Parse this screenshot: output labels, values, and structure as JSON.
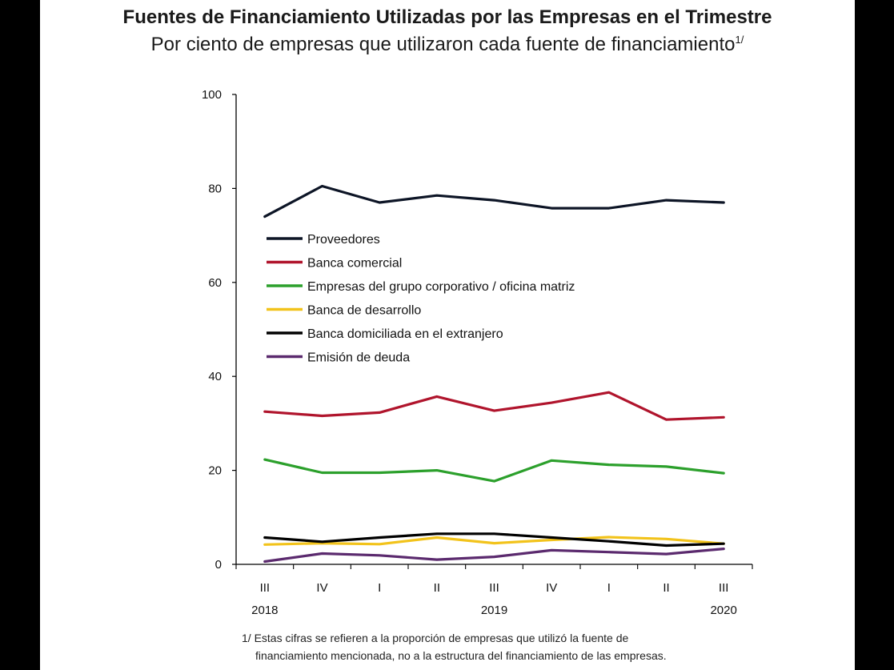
{
  "title": "Fuentes de Financiamiento Utilizadas por las Empresas en el Trimestre",
  "subtitle": "Por ciento de empresas que utilizaron cada fuente de financiamiento",
  "subtitle_note": "1/",
  "footnote": {
    "line1": "1/ Estas cifras se refieren a la proporción de empresas que utilizó la fuente de",
    "line2": "financiamiento mencionada, no a la estructura del financiamiento de las empresas."
  },
  "chart_data": {
    "type": "line",
    "title": "Fuentes de Financiamiento Utilizadas por las Empresas en el Trimestre",
    "ylabel": "Por ciento de empresas que utilizaron cada fuente de financiamiento",
    "ylim": [
      0,
      100
    ],
    "yticks": [
      0,
      20,
      40,
      60,
      80,
      100
    ],
    "categories": [
      "III",
      "IV",
      "I",
      "II",
      "III",
      "IV",
      "I",
      "II",
      "III"
    ],
    "year_labels": [
      {
        "label": "2018",
        "index": 0
      },
      {
        "label": "2019",
        "index": 4
      },
      {
        "label": "2020",
        "index": 8
      }
    ],
    "legend_position": "upper-left",
    "series": [
      {
        "name": "Proveedores",
        "color": "#0d1526",
        "values": [
          74.0,
          80.5,
          77.0,
          78.5,
          77.5,
          75.8,
          75.8,
          77.5,
          77.0
        ]
      },
      {
        "name": "Banca comercial",
        "color": "#b0142c",
        "values": [
          32.5,
          31.6,
          32.3,
          35.7,
          32.7,
          34.4,
          36.6,
          30.8,
          31.3
        ]
      },
      {
        "name": "Empresas del grupo corporativo / oficina matriz",
        "color": "#2ca02c",
        "values": [
          22.3,
          19.5,
          19.5,
          20.0,
          17.7,
          22.1,
          21.2,
          20.8,
          19.4
        ]
      },
      {
        "name": "Banca de desarrollo",
        "color": "#f2c31b",
        "values": [
          4.2,
          4.5,
          4.3,
          5.7,
          4.5,
          5.2,
          5.8,
          5.4,
          4.4
        ]
      },
      {
        "name": "Banca domiciliada en el extranjero",
        "color": "#000000",
        "values": [
          5.7,
          4.8,
          5.7,
          6.5,
          6.5,
          5.7,
          4.9,
          4.0,
          4.4
        ]
      },
      {
        "name": "Emisión de deuda",
        "color": "#5b2a6e",
        "values": [
          0.6,
          2.3,
          1.9,
          1.0,
          1.6,
          3.0,
          2.6,
          2.2,
          3.3
        ]
      }
    ]
  }
}
